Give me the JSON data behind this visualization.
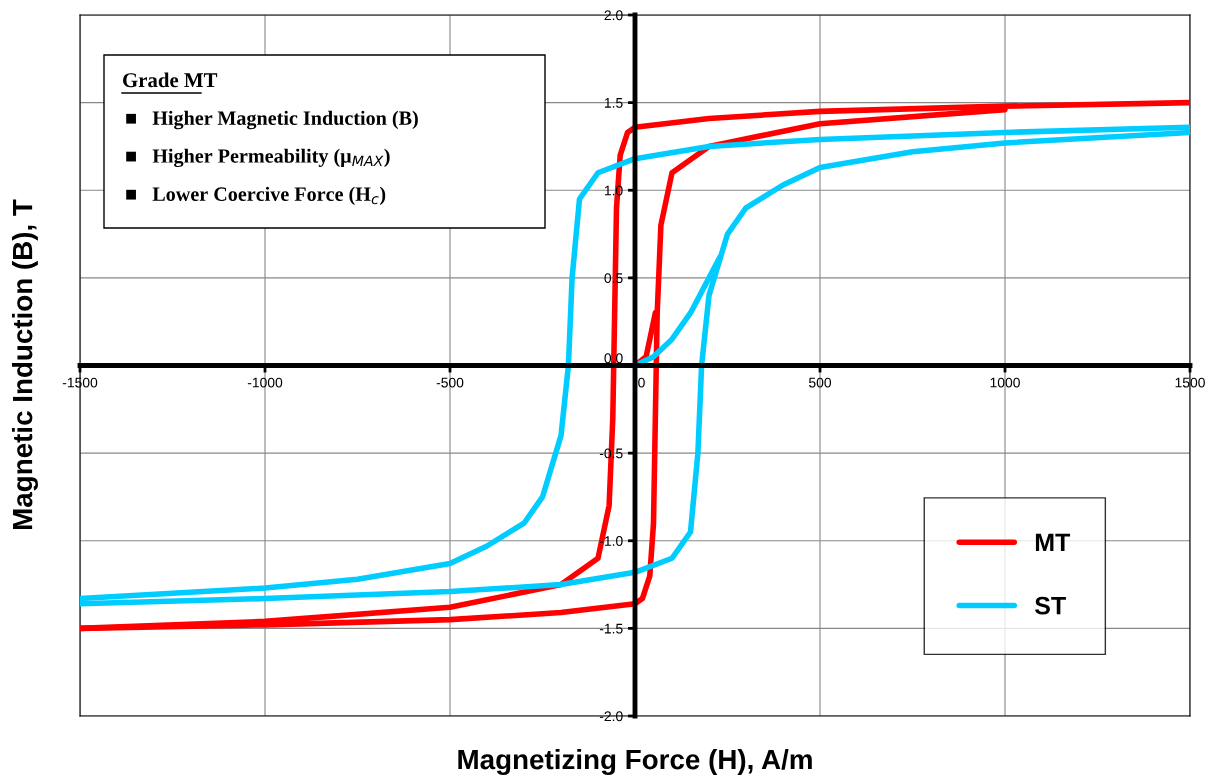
{
  "chart_data": {
    "type": "line",
    "xlabel": "Magnetizing Force (H), A/m",
    "ylabel": "Magnetic Induction (B), T",
    "annotations": [
      "Grade MT",
      "■   Higher Magnetic Induction (B)",
      "■   Higher Permeability (μ$_{MAX}$)",
      "■   Lower Coercive Force (H$_{c}$)"
    ],
    "series": [
      {
        "name": "MT",
        "color": "#ff0000",
        "x": [
          1500,
          1000,
          500,
          200,
          0,
          -20,
          -40,
          -50,
          -55,
          -60,
          -70,
          -100,
          -200,
          -500,
          -1000,
          -1500
        ],
        "values": [
          1.5,
          1.48,
          1.45,
          1.41,
          1.36,
          1.33,
          1.2,
          0.9,
          0.3,
          -0.3,
          -0.8,
          -1.1,
          -1.25,
          -1.38,
          -1.46,
          -1.5
        ]
      },
      {
        "color": "#ff0000",
        "x": [
          -1500,
          -1000,
          -500,
          -200,
          0,
          20,
          40,
          50,
          55,
          60,
          70,
          100,
          200,
          500,
          1000
        ],
        "values": [
          -1.5,
          -1.48,
          -1.45,
          -1.41,
          -1.36,
          -1.33,
          -1.2,
          -0.9,
          -0.3,
          0.3,
          0.8,
          1.1,
          1.25,
          1.38,
          1.46
        ]
      },
      {
        "name": "ST",
        "color": "#00ccff",
        "x": [
          1500,
          1000,
          500,
          200,
          0,
          -100,
          -150,
          -170,
          -180,
          -200,
          -250,
          -300,
          -400,
          -500,
          -750,
          -1000,
          -1500
        ],
        "values": [
          1.36,
          1.33,
          1.29,
          1.25,
          1.18,
          1.1,
          0.95,
          0.5,
          0.0,
          -0.4,
          -0.75,
          -0.9,
          -1.03,
          -1.13,
          -1.22,
          -1.27,
          -1.33
        ]
      },
      {
        "color": "#00ccff",
        "x": [
          -1500,
          -1000,
          -500,
          -200,
          0,
          100,
          150,
          170,
          180,
          200,
          250,
          300,
          400,
          500,
          750,
          1000,
          1500
        ],
        "values": [
          -1.36,
          -1.33,
          -1.29,
          -1.25,
          -1.18,
          -1.1,
          -0.95,
          -0.5,
          0.0,
          0.4,
          0.75,
          0.9,
          1.03,
          1.13,
          1.22,
          1.27,
          1.33
        ]
      },
      {
        "color": "#ff0000",
        "x": [
          0,
          30,
          45,
          55
        ],
        "values": [
          0.0,
          0.05,
          0.2,
          0.3
        ]
      },
      {
        "color": "#00ccff",
        "x": [
          0,
          50,
          100,
          150,
          200,
          230
        ],
        "values": [
          0.0,
          0.05,
          0.15,
          0.3,
          0.5,
          0.62
        ]
      }
    ],
    "xlim": [
      -1500,
      1500
    ],
    "xticks": [
      -1500,
      -1000,
      -500,
      0,
      500,
      1000,
      1500
    ],
    "ylim": [
      -2.0,
      2.0
    ],
    "yticks": [
      {
        "value": -2.0,
        "label": "-2.0"
      },
      -1.5,
      {
        "value": -1.0,
        "label": "-1.0"
      },
      -0.5,
      {
        "value": 0.0,
        "label": "0.0"
      },
      0.5,
      {
        "value": 1.0,
        "label": "1.0"
      },
      1.5,
      {
        "value": 2.0,
        "label": "2.0"
      }
    ],
    "grid": true,
    "legend": "bottom right",
    "line_style": "solid",
    "marker": "none"
  }
}
